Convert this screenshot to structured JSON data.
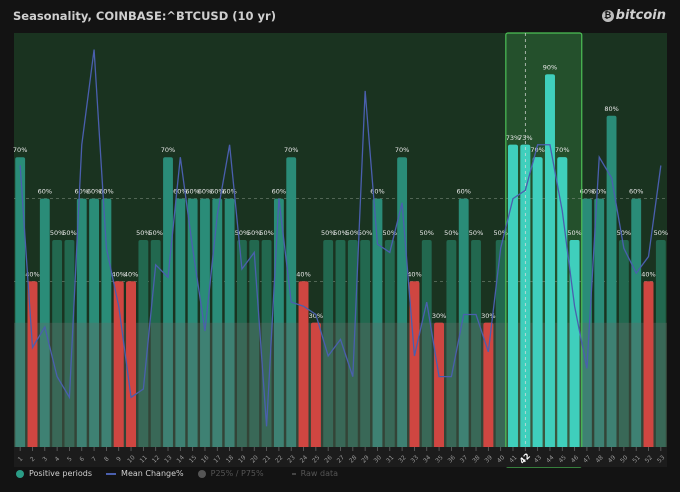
{
  "header": {
    "title": "Seasonality, COINBASE:^BTCUSD (10 yr)",
    "logo_text": "bitcoin",
    "logo_icon": "bitcoin-icon"
  },
  "legend": {
    "positive": "Positive periods",
    "mean": "Mean Change%",
    "pct": "P25% / P75%",
    "raw": "Raw data"
  },
  "colors": {
    "background": "#131313",
    "plot_bg": "#1a3320",
    "bar_high": "#2a8c78",
    "bar_mid": "#22684f",
    "bar_low": "#cf4641",
    "bar_selected": "#3fcfbc",
    "mean_line": "#4a5fae",
    "selection_border": "#4cc056"
  },
  "chart_data": {
    "type": "bar",
    "title": "Seasonality, COINBASE:^BTCUSD (10 yr)",
    "categories": [
      "1",
      "2",
      "3",
      "4",
      "5",
      "6",
      "7",
      "8",
      "9",
      "10",
      "11",
      "12",
      "13",
      "14",
      "15",
      "16",
      "17",
      "18",
      "19",
      "20",
      "21",
      "22",
      "23",
      "24",
      "25",
      "26",
      "27",
      "28",
      "29",
      "30",
      "31",
      "32",
      "33",
      "34",
      "35",
      "36",
      "37",
      "38",
      "39",
      "40",
      "41",
      "42",
      "43",
      "44",
      "45",
      "46",
      "47",
      "48",
      "49",
      "50",
      "51",
      "52",
      "53"
    ],
    "series": [
      {
        "name": "Positive periods",
        "unit": "%",
        "values": [
          70,
          40,
          60,
          50,
          50,
          60,
          60,
          60,
          40,
          40,
          50,
          50,
          70,
          60,
          60,
          60,
          60,
          60,
          50,
          50,
          50,
          60,
          70,
          40,
          30,
          50,
          50,
          50,
          50,
          60,
          50,
          70,
          40,
          50,
          30,
          50,
          60,
          50,
          30,
          50,
          73,
          73,
          70,
          90,
          70,
          50,
          60,
          60,
          80,
          50,
          60,
          40,
          50
        ]
      },
      {
        "name": "Mean Change%",
        "type": "line",
        "values": [
          68,
          24,
          29,
          17,
          12,
          73,
          96,
          48,
          34,
          12,
          14,
          44,
          41,
          70,
          48,
          28,
          56,
          73,
          43,
          47,
          5,
          60,
          35,
          34,
          32,
          22,
          26,
          17,
          86,
          49,
          47,
          59,
          22,
          35,
          17,
          17,
          32,
          32,
          23,
          48,
          60,
          62,
          73,
          73,
          57,
          34,
          19,
          70,
          65,
          48,
          42,
          46,
          68
        ]
      }
    ],
    "ylim": [
      0,
      100
    ],
    "gridlines": [
      40,
      60
    ],
    "percentile_band": "P25% / P75%",
    "highlighted_categories": [
      "41",
      "42",
      "43",
      "44",
      "45",
      "46"
    ],
    "current_category": "42",
    "legend_position": "bottom-left"
  }
}
